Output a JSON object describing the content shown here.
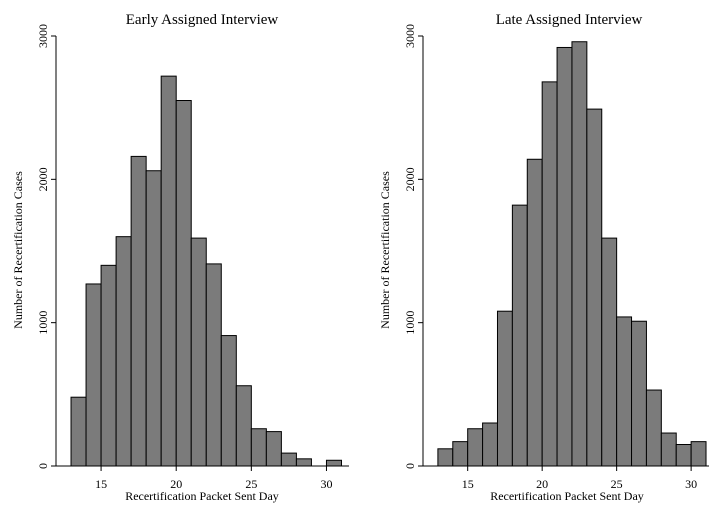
{
  "chart_data": [
    {
      "type": "bar",
      "title": "Early Assigned Interview",
      "xlabel": "Recertification Packet Sent Day",
      "ylabel": "Number of Recertification Cases",
      "xlim": [
        12,
        31.5
      ],
      "ylim": [
        0,
        3000
      ],
      "xticks": [
        15,
        20,
        25,
        30
      ],
      "yticks": [
        0,
        1000,
        2000,
        3000
      ],
      "bin_width": 1,
      "bin_starts": [
        13,
        14,
        15,
        16,
        17,
        18,
        19,
        20,
        21,
        22,
        23,
        24,
        25,
        26,
        27,
        28,
        29,
        30
      ],
      "values": [
        480,
        1270,
        1400,
        1600,
        2160,
        2060,
        2720,
        2550,
        1590,
        1410,
        910,
        560,
        260,
        240,
        90,
        50,
        0,
        40
      ]
    },
    {
      "type": "bar",
      "title": "Late Assigned Interview",
      "xlabel": "Recertification Packet Sent Day",
      "ylabel": "Number of Recertification Cases",
      "xlim": [
        12,
        31.2
      ],
      "ylim": [
        0,
        3000
      ],
      "xticks": [
        15,
        20,
        25,
        30
      ],
      "yticks": [
        0,
        1000,
        2000,
        3000
      ],
      "bin_width": 1,
      "bin_starts": [
        13,
        14,
        15,
        16,
        17,
        18,
        19,
        20,
        21,
        22,
        23,
        24,
        25,
        26,
        27,
        28,
        29,
        30
      ],
      "values": [
        120,
        170,
        260,
        300,
        1080,
        1820,
        2140,
        2680,
        2920,
        2960,
        2490,
        1590,
        1040,
        1010,
        530,
        230,
        150,
        170
      ]
    }
  ]
}
